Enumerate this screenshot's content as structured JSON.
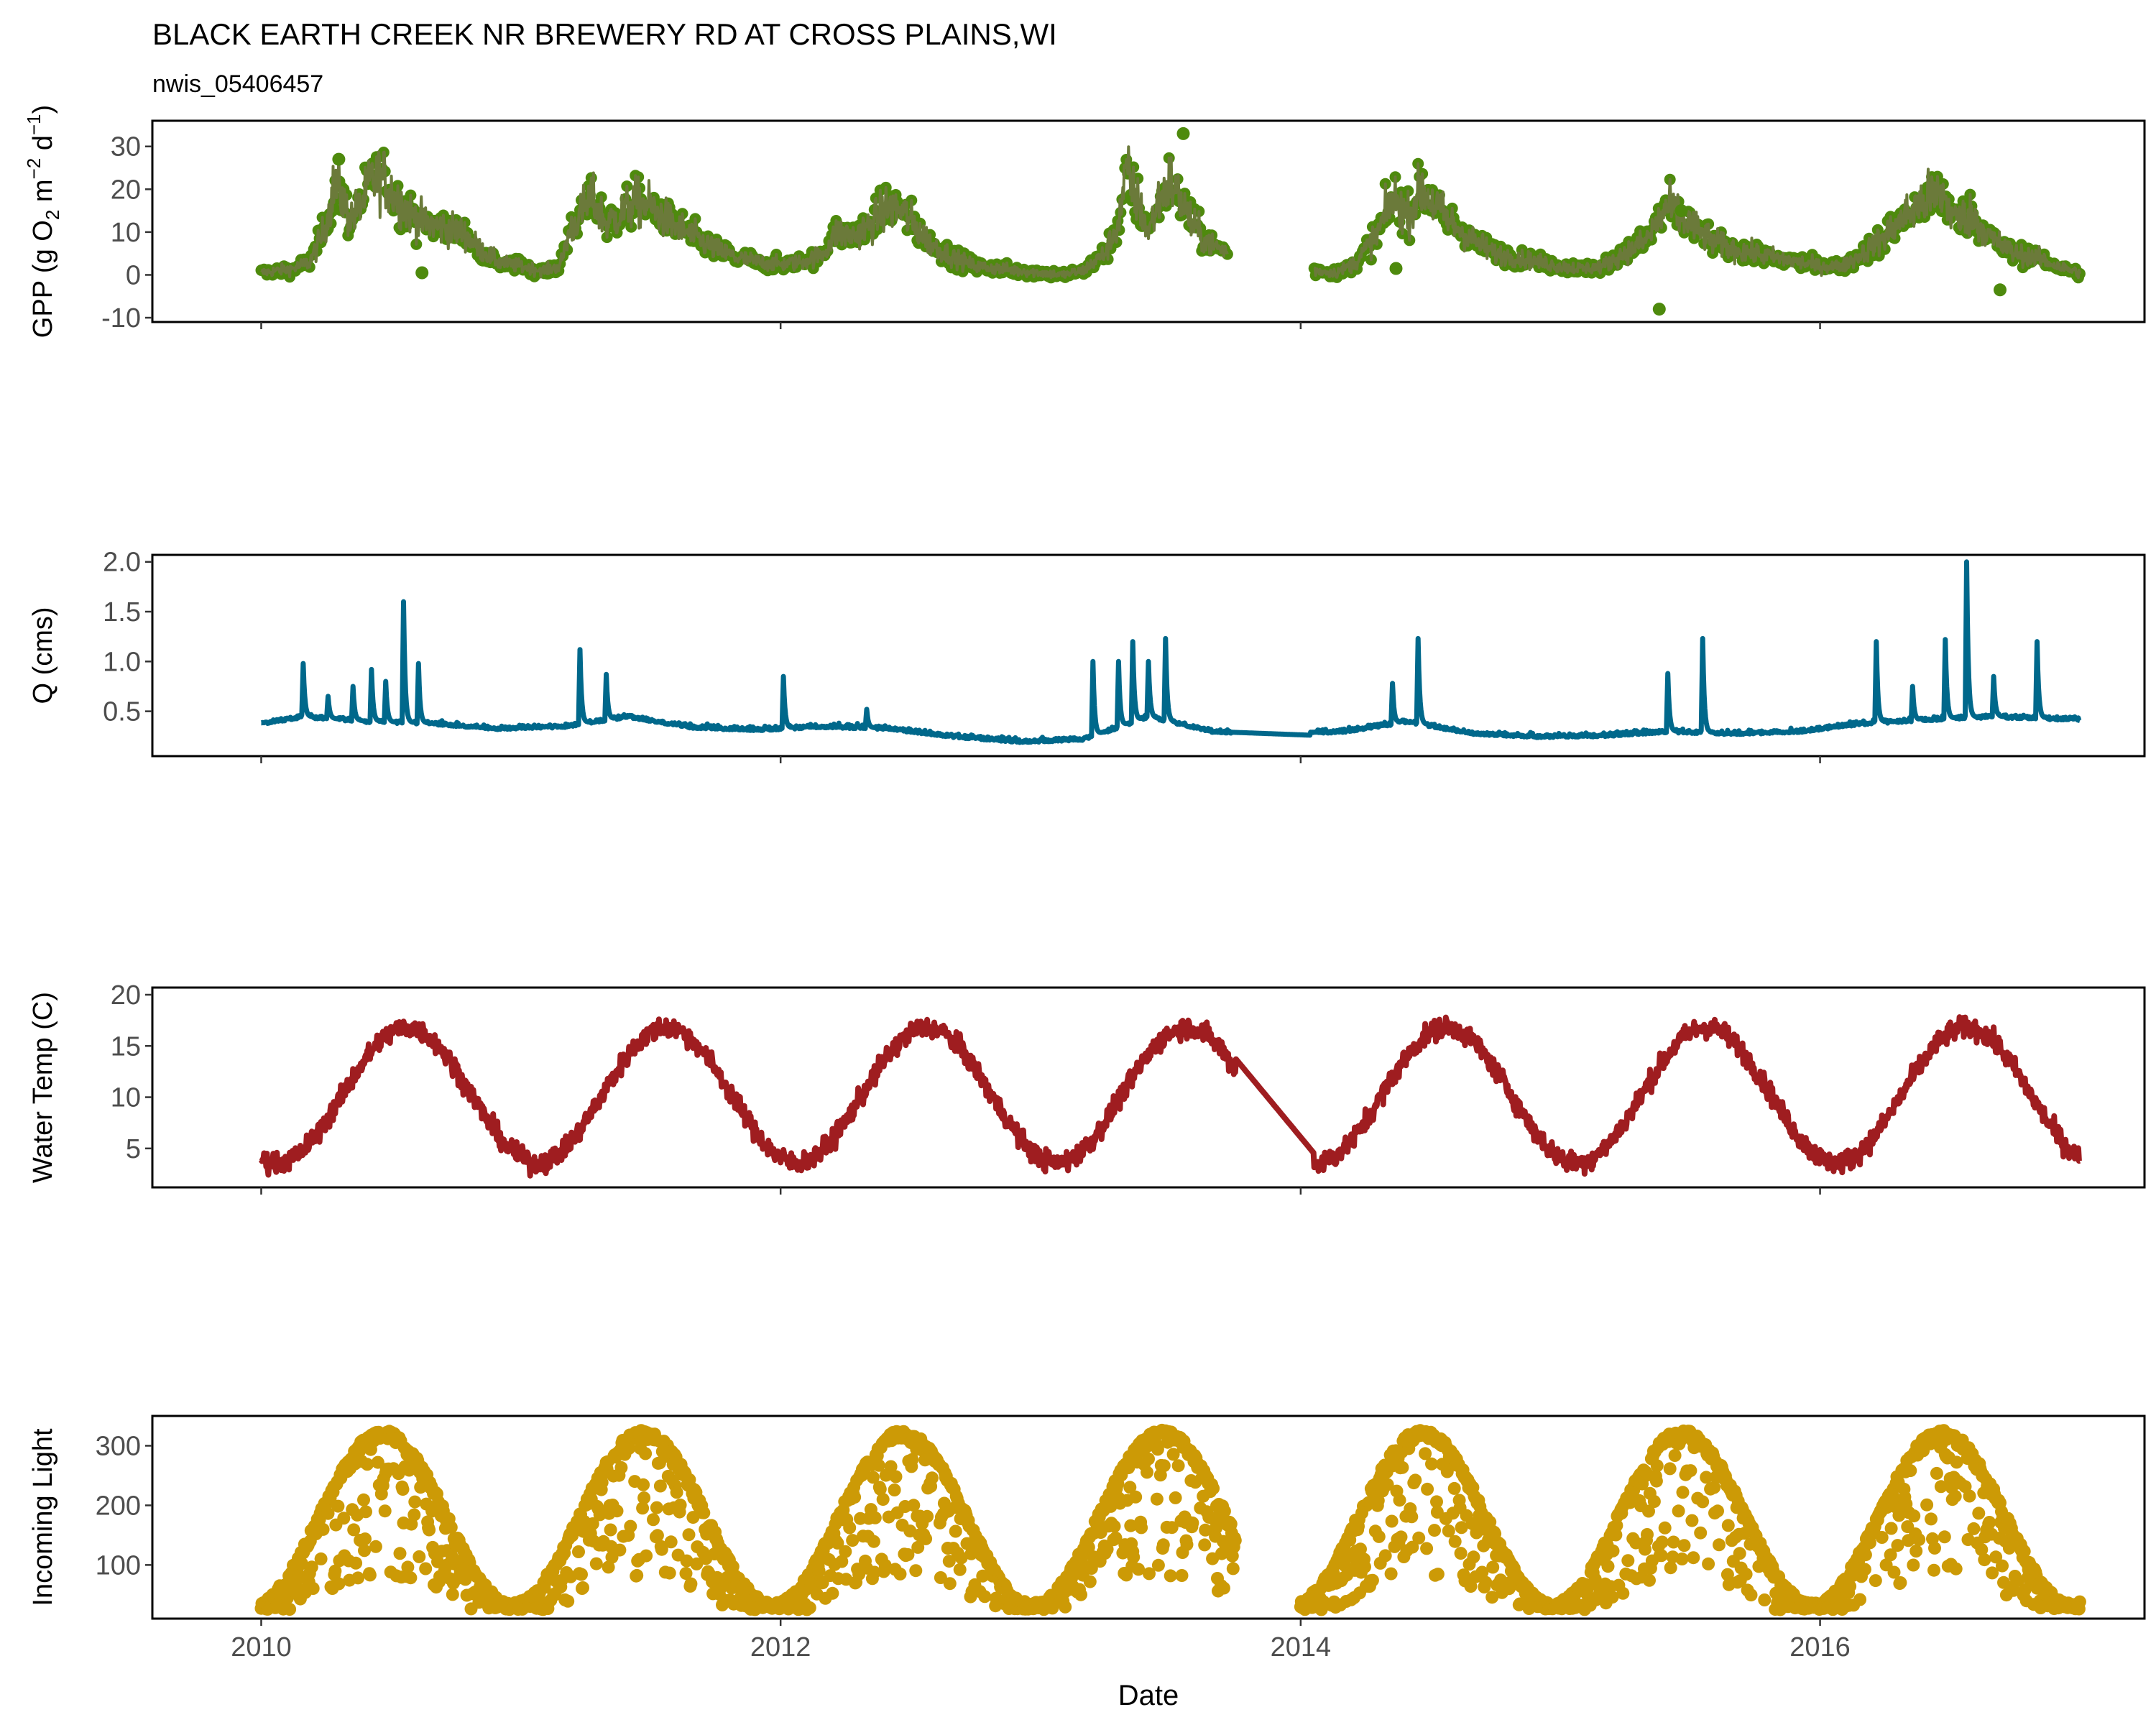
{
  "chart_data": {
    "type": "multi-panel time series",
    "title": "BLACK EARTH CREEK NR BREWERY RD AT CROSS PLAINS,WI",
    "subtitle": "nwis_05406457",
    "xlabel": "Date",
    "x_range": [
      "2009-08-01",
      "2017-04-01"
    ],
    "x_ticks": [
      "2010",
      "2012",
      "2014",
      "2016"
    ],
    "grid": false,
    "panels": [
      {
        "id": "gpp",
        "type": "scatter+line",
        "ylabel_main": "GPP (g  O",
        "ylabel_sub1": "2",
        "ylabel_mid": " m",
        "ylabel_sup1": "−2",
        "ylabel_mid2": " d",
        "ylabel_sup2": "−1",
        "ylabel_end": ")",
        "color": "#4e8a0d",
        "line_color": "#6b7a3a",
        "ylim": [
          -11,
          36
        ],
        "yticks": [
          "-10",
          "0",
          "10",
          "20",
          "30"
        ],
        "ytick_values": [
          -10,
          0,
          10,
          20,
          30
        ],
        "key_points": [
          [
            "2010-01-01",
            0.5
          ],
          [
            "2010-02-15",
            1.5
          ],
          [
            "2010-03-10",
            3
          ],
          [
            "2010-03-25",
            8
          ],
          [
            "2010-04-05",
            14
          ],
          [
            "2010-04-15",
            22
          ],
          [
            "2010-04-25",
            18
          ],
          [
            "2010-05-05",
            13
          ],
          [
            "2010-05-20",
            16
          ],
          [
            "2010-06-05",
            22
          ],
          [
            "2010-06-20",
            23
          ],
          [
            "2010-07-10",
            18
          ],
          [
            "2010-08-01",
            14
          ],
          [
            "2010-08-20",
            12
          ],
          [
            "2010-09-15",
            11
          ],
          [
            "2010-10-10",
            10
          ],
          [
            "2010-11-05",
            6
          ],
          [
            "2010-12-01",
            3
          ],
          [
            "2011-01-01",
            2
          ],
          [
            "2011-02-01",
            1
          ],
          [
            "2011-02-25",
            2
          ],
          [
            "2011-03-10",
            10
          ],
          [
            "2011-03-25",
            14
          ],
          [
            "2011-04-10",
            18
          ],
          [
            "2011-05-01",
            12
          ],
          [
            "2011-05-20",
            14
          ],
          [
            "2011-06-10",
            17
          ],
          [
            "2011-07-01",
            16
          ],
          [
            "2011-08-01",
            12
          ],
          [
            "2011-09-01",
            9
          ],
          [
            "2011-10-01",
            6
          ],
          [
            "2011-11-01",
            4
          ],
          [
            "2011-12-01",
            3
          ],
          [
            "2012-01-01",
            2.5
          ],
          [
            "2012-02-01",
            3
          ],
          [
            "2012-03-01",
            5
          ],
          [
            "2012-03-20",
            10
          ],
          [
            "2012-04-10",
            9
          ],
          [
            "2012-05-01",
            11
          ],
          [
            "2012-06-01",
            16
          ],
          [
            "2012-06-20",
            15
          ],
          [
            "2012-07-10",
            11
          ],
          [
            "2012-08-01",
            7
          ],
          [
            "2012-09-01",
            4
          ],
          [
            "2012-10-01",
            2
          ],
          [
            "2012-11-01",
            1.5
          ],
          [
            "2012-12-01",
            1
          ],
          [
            "2013-01-01",
            0.5
          ],
          [
            "2013-02-01",
            0
          ],
          [
            "2013-03-01",
            1
          ],
          [
            "2013-04-01",
            5
          ],
          [
            "2013-04-20",
            12
          ],
          [
            "2013-05-01",
            24
          ],
          [
            "2013-05-15",
            18
          ],
          [
            "2013-06-01",
            10
          ],
          [
            "2013-06-15",
            17
          ],
          [
            "2013-07-01",
            22
          ],
          [
            "2013-07-15",
            18
          ],
          [
            "2013-08-01",
            12
          ],
          [
            "2013-08-20",
            8
          ],
          [
            "2013-09-10",
            6
          ],
          [
            "2014-01-20",
            1
          ],
          [
            "2014-02-20",
            0.5
          ],
          [
            "2014-03-20",
            3
          ],
          [
            "2014-04-20",
            10
          ],
          [
            "2014-05-10",
            18
          ],
          [
            "2014-06-01",
            14
          ],
          [
            "2014-06-20",
            20
          ],
          [
            "2014-07-10",
            16
          ],
          [
            "2014-08-01",
            12
          ],
          [
            "2014-09-01",
            8
          ],
          [
            "2014-10-01",
            5
          ],
          [
            "2014-11-01",
            4
          ],
          [
            "2014-12-01",
            3
          ],
          [
            "2015-01-01",
            2
          ],
          [
            "2015-02-01",
            1.5
          ],
          [
            "2015-03-01",
            2
          ],
          [
            "2015-04-01",
            5
          ],
          [
            "2015-05-01",
            8
          ],
          [
            "2015-06-01",
            16
          ],
          [
            "2015-07-01",
            12
          ],
          [
            "2015-08-01",
            8
          ],
          [
            "2015-09-01",
            6
          ],
          [
            "2015-10-01",
            5
          ],
          [
            "2015-11-01",
            4
          ],
          [
            "2015-12-01",
            3
          ],
          [
            "2016-01-01",
            2
          ],
          [
            "2016-02-01",
            2
          ],
          [
            "2016-03-01",
            5
          ],
          [
            "2016-04-01",
            9
          ],
          [
            "2016-05-01",
            14
          ],
          [
            "2016-06-01",
            18
          ],
          [
            "2016-06-20",
            19
          ],
          [
            "2016-07-10",
            13
          ],
          [
            "2016-08-01",
            14
          ],
          [
            "2016-09-01",
            8
          ],
          [
            "2016-10-01",
            5
          ],
          [
            "2016-11-01",
            4
          ],
          [
            "2016-12-01",
            2
          ],
          [
            "2016-12-31",
            0.5
          ]
        ],
        "outliers": [
          [
            "2010-04-20",
            27
          ],
          [
            "2013-07-20",
            33
          ],
          [
            "2015-05-20",
            -8
          ],
          [
            "2016-09-10",
            -3.5
          ],
          [
            "2010-08-15",
            0.5
          ],
          [
            "2014-05-15",
            1.5
          ],
          [
            "2015-06-20",
            15
          ]
        ]
      },
      {
        "id": "q",
        "type": "line",
        "ylabel": "Q (cms)",
        "color": "#00688b",
        "ylim": [
          0.05,
          2.07
        ],
        "yticks": [
          "0.5",
          "1.0",
          "1.5",
          "2.0"
        ],
        "ytick_values": [
          0.5,
          1.0,
          1.5,
          2.0
        ],
        "base_points": [
          [
            "2010-01-01",
            0.38
          ],
          [
            "2010-03-01",
            0.45
          ],
          [
            "2010-06-01",
            0.4
          ],
          [
            "2010-09-01",
            0.38
          ],
          [
            "2010-12-01",
            0.33
          ],
          [
            "2011-03-01",
            0.35
          ],
          [
            "2011-06-01",
            0.45
          ],
          [
            "2011-09-01",
            0.34
          ],
          [
            "2011-12-01",
            0.32
          ],
          [
            "2012-03-01",
            0.35
          ],
          [
            "2012-06-01",
            0.33
          ],
          [
            "2012-09-01",
            0.25
          ],
          [
            "2012-12-01",
            0.2
          ],
          [
            "2013-03-01",
            0.22
          ],
          [
            "2013-06-01",
            0.45
          ],
          [
            "2013-09-01",
            0.3
          ],
          [
            "2013-12-01",
            0.28
          ],
          [
            "2014-03-01",
            0.3
          ],
          [
            "2014-06-01",
            0.4
          ],
          [
            "2014-09-01",
            0.28
          ],
          [
            "2014-12-01",
            0.25
          ],
          [
            "2015-03-01",
            0.26
          ],
          [
            "2015-06-01",
            0.3
          ],
          [
            "2015-09-01",
            0.28
          ],
          [
            "2015-12-01",
            0.3
          ],
          [
            "2016-03-01",
            0.38
          ],
          [
            "2016-06-01",
            0.42
          ],
          [
            "2016-09-01",
            0.45
          ],
          [
            "2016-12-31",
            0.42
          ]
        ],
        "peaks": [
          [
            "2010-03-01",
            0.98
          ],
          [
            "2010-04-05",
            0.65
          ],
          [
            "2010-05-10",
            0.75
          ],
          [
            "2010-06-05",
            0.92
          ],
          [
            "2010-06-25",
            0.8
          ],
          [
            "2010-07-20",
            1.6
          ],
          [
            "2010-08-10",
            0.98
          ],
          [
            "2011-03-25",
            1.12
          ],
          [
            "2011-05-01",
            0.87
          ],
          [
            "2012-01-05",
            0.85
          ],
          [
            "2012-05-01",
            0.52
          ],
          [
            "2013-03-15",
            1.0
          ],
          [
            "2013-04-20",
            1.0
          ],
          [
            "2013-05-10",
            1.2
          ],
          [
            "2013-06-01",
            1.0
          ],
          [
            "2013-06-25",
            1.23
          ],
          [
            "2014-06-15",
            1.23
          ],
          [
            "2014-05-10",
            0.78
          ],
          [
            "2015-06-01",
            0.88
          ],
          [
            "2015-07-20",
            1.23
          ],
          [
            "2016-03-20",
            1.2
          ],
          [
            "2016-05-10",
            0.75
          ],
          [
            "2016-06-25",
            1.22
          ],
          [
            "2016-07-25",
            2.0
          ],
          [
            "2016-09-01",
            0.85
          ],
          [
            "2016-11-01",
            1.2
          ]
        ]
      },
      {
        "id": "temp",
        "type": "line",
        "ylabel": "Water Temp (C)",
        "color": "#9f1d20",
        "ylim": [
          1.2,
          20.7
        ],
        "yticks": [
          "5",
          "10",
          "15",
          "20"
        ],
        "ytick_values": [
          5,
          10,
          15,
          20
        ],
        "gap": [
          "2013-10-01",
          "2014-01-20"
        ]
      },
      {
        "id": "light",
        "type": "scatter",
        "ylabel": "Incoming Light",
        "color": "#cc9a06",
        "ylim": [
          10,
          350
        ],
        "yticks": [
          "100",
          "200",
          "300"
        ],
        "ytick_values": [
          100,
          200,
          300
        ],
        "gap": [
          "2013-10-01",
          "2014-01-01"
        ]
      }
    ]
  }
}
